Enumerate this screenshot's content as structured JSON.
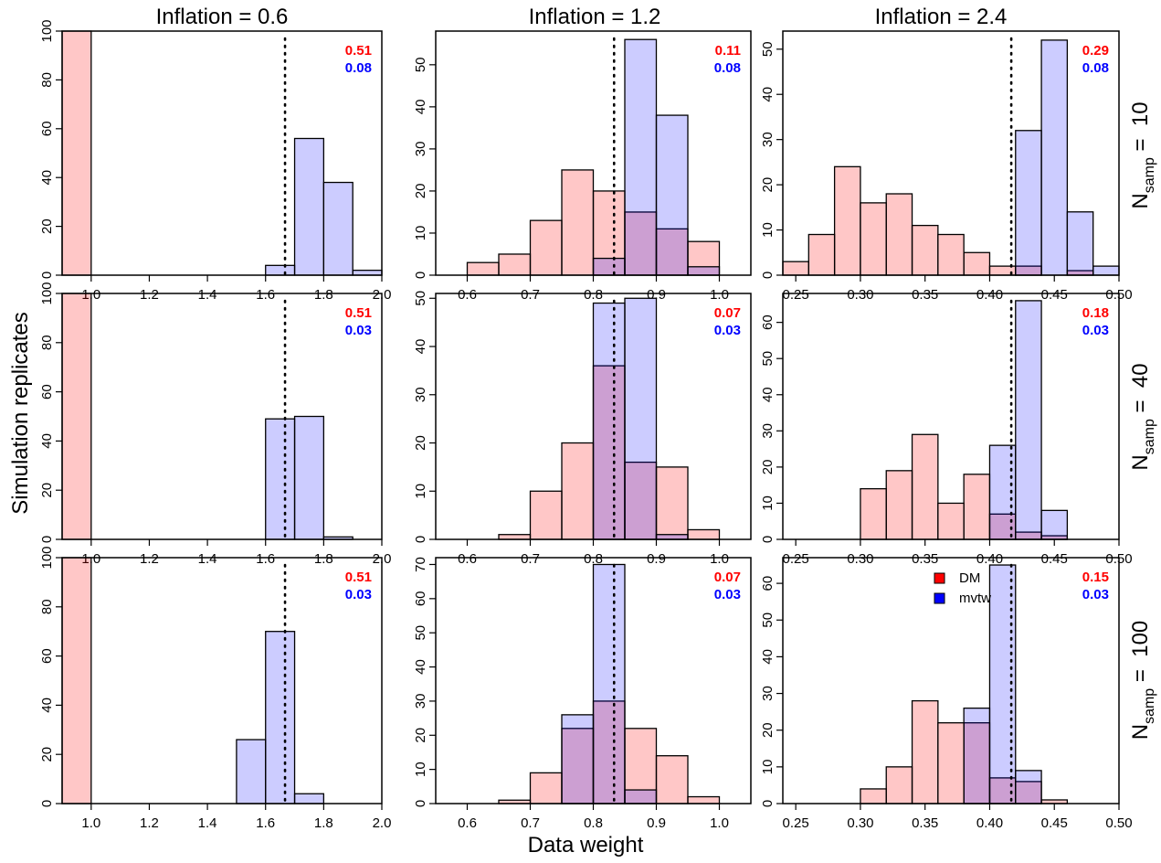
{
  "figure": {
    "ylabel": "Simulation replicates",
    "xlabel": "Data weight",
    "column_titles": [
      "Inflation = 0.6",
      "Inflation = 1.2",
      "Inflation = 2.4"
    ],
    "row_labels": [
      {
        "prefix": "N",
        "subscript": "samp",
        "suffix": " =  10"
      },
      {
        "prefix": "N",
        "subscript": "samp",
        "suffix": " =  40"
      },
      {
        "prefix": "N",
        "subscript": "samp",
        "suffix": " =  100"
      }
    ],
    "legend": {
      "entries": [
        {
          "name": "DM",
          "color": "#ff0000"
        },
        {
          "name": "mvtw",
          "color": "#0000ff"
        }
      ],
      "placement": "panel row 3, column 3, top-right"
    },
    "colors": {
      "dm_fill": "rgba(255,0,0,0.22)",
      "mvtw_fill": "rgba(0,0,255,0.20)",
      "dm_text": "#ff0000",
      "mvtw_text": "#0000ff"
    }
  },
  "chart_data": [
    {
      "type": "bar",
      "row": 0,
      "col": 0,
      "title": "Inflation = 0.6",
      "row_label": "Nsamp = 10",
      "xlim": [
        0.9,
        2.0
      ],
      "ylim": [
        0,
        100
      ],
      "xticks": [
        "1.0",
        "1.2",
        "1.4",
        "1.6",
        "1.8",
        "2.0"
      ],
      "yticks": [
        "0",
        "20",
        "40",
        "60",
        "80",
        "100"
      ],
      "ref_line": 1.667,
      "stat_dm": "0.51",
      "stat_mvtw": "0.08",
      "series": [
        {
          "name": "DM",
          "bins": [
            [
              0.9,
              1.0,
              100
            ]
          ]
        },
        {
          "name": "mvtw",
          "bins": [
            [
              1.6,
              1.7,
              4
            ],
            [
              1.7,
              1.8,
              56
            ],
            [
              1.8,
              1.9,
              38
            ],
            [
              1.9,
              2.0,
              2
            ]
          ]
        }
      ]
    },
    {
      "type": "bar",
      "row": 0,
      "col": 1,
      "title": "Inflation = 1.2",
      "row_label": "Nsamp = 10",
      "xlim": [
        0.55,
        1.05
      ],
      "ylim": [
        0,
        58
      ],
      "xticks": [
        "0.6",
        "0.7",
        "0.8",
        "0.9",
        "1.0"
      ],
      "yticks": [
        "0",
        "10",
        "20",
        "30",
        "40",
        "50"
      ],
      "ref_line": 0.833,
      "stat_dm": "0.11",
      "stat_mvtw": "0.08",
      "series": [
        {
          "name": "DM",
          "bins": [
            [
              0.6,
              0.65,
              3
            ],
            [
              0.65,
              0.7,
              5
            ],
            [
              0.7,
              0.75,
              13
            ],
            [
              0.75,
              0.8,
              25
            ],
            [
              0.8,
              0.85,
              20
            ],
            [
              0.85,
              0.9,
              15
            ],
            [
              0.9,
              0.95,
              11
            ],
            [
              0.95,
              1.0,
              8
            ]
          ]
        },
        {
          "name": "mvtw",
          "bins": [
            [
              0.8,
              0.85,
              4
            ],
            [
              0.85,
              0.9,
              56
            ],
            [
              0.9,
              0.95,
              38
            ],
            [
              0.95,
              1.0,
              2
            ]
          ]
        }
      ]
    },
    {
      "type": "bar",
      "row": 0,
      "col": 2,
      "title": "Inflation = 2.4",
      "row_label": "Nsamp = 10",
      "xlim": [
        0.24,
        0.5
      ],
      "ylim": [
        0,
        54
      ],
      "xticks": [
        "0.25",
        "0.30",
        "0.35",
        "0.40",
        "0.45",
        "0.50"
      ],
      "yticks": [
        "0",
        "10",
        "20",
        "30",
        "40",
        "50"
      ],
      "ref_line": 0.4167,
      "stat_dm": "0.29",
      "stat_mvtw": "0.08",
      "series": [
        {
          "name": "DM",
          "bins": [
            [
              0.24,
              0.26,
              3
            ],
            [
              0.26,
              0.28,
              9
            ],
            [
              0.28,
              0.3,
              24
            ],
            [
              0.3,
              0.32,
              16
            ],
            [
              0.32,
              0.34,
              18
            ],
            [
              0.34,
              0.36,
              11
            ],
            [
              0.36,
              0.38,
              9
            ],
            [
              0.38,
              0.4,
              5
            ],
            [
              0.4,
              0.42,
              2
            ],
            [
              0.42,
              0.44,
              2
            ],
            [
              0.46,
              0.48,
              1
            ]
          ]
        },
        {
          "name": "mvtw",
          "bins": [
            [
              0.42,
              0.44,
              32
            ],
            [
              0.44,
              0.46,
              52
            ],
            [
              0.46,
              0.48,
              14
            ],
            [
              0.48,
              0.5,
              2
            ]
          ]
        }
      ]
    },
    {
      "type": "bar",
      "row": 1,
      "col": 0,
      "title": "Inflation = 0.6",
      "row_label": "Nsamp = 40",
      "xlim": [
        0.9,
        2.0
      ],
      "ylim": [
        0,
        100
      ],
      "xticks": [
        "1.0",
        "1.2",
        "1.4",
        "1.6",
        "1.8",
        "2.0"
      ],
      "yticks": [
        "0",
        "20",
        "40",
        "60",
        "80",
        "100"
      ],
      "ref_line": 1.667,
      "stat_dm": "0.51",
      "stat_mvtw": "0.03",
      "series": [
        {
          "name": "DM",
          "bins": [
            [
              0.9,
              1.0,
              100
            ]
          ]
        },
        {
          "name": "mvtw",
          "bins": [
            [
              1.6,
              1.7,
              49
            ],
            [
              1.7,
              1.8,
              50
            ],
            [
              1.8,
              1.9,
              1
            ]
          ]
        }
      ]
    },
    {
      "type": "bar",
      "row": 1,
      "col": 1,
      "title": "Inflation = 1.2",
      "row_label": "Nsamp = 40",
      "xlim": [
        0.55,
        1.05
      ],
      "ylim": [
        0,
        51
      ],
      "xticks": [
        "0.6",
        "0.7",
        "0.8",
        "0.9",
        "1.0"
      ],
      "yticks": [
        "0",
        "10",
        "20",
        "30",
        "40",
        "50"
      ],
      "ref_line": 0.833,
      "stat_dm": "0.07",
      "stat_mvtw": "0.03",
      "series": [
        {
          "name": "DM",
          "bins": [
            [
              0.65,
              0.7,
              1
            ],
            [
              0.7,
              0.75,
              10
            ],
            [
              0.75,
              0.8,
              20
            ],
            [
              0.8,
              0.85,
              36
            ],
            [
              0.85,
              0.9,
              16
            ],
            [
              0.9,
              0.95,
              15
            ],
            [
              0.95,
              1.0,
              2
            ]
          ]
        },
        {
          "name": "mvtw",
          "bins": [
            [
              0.8,
              0.85,
              49
            ],
            [
              0.85,
              0.9,
              50
            ],
            [
              0.9,
              0.95,
              1
            ]
          ]
        }
      ]
    },
    {
      "type": "bar",
      "row": 1,
      "col": 2,
      "title": "Inflation = 2.4",
      "row_label": "Nsamp = 40",
      "xlim": [
        0.24,
        0.5
      ],
      "ylim": [
        0,
        68
      ],
      "xticks": [
        "0.25",
        "0.30",
        "0.35",
        "0.40",
        "0.45",
        "0.50"
      ],
      "yticks": [
        "0",
        "10",
        "20",
        "30",
        "40",
        "50",
        "60"
      ],
      "ref_line": 0.4167,
      "stat_dm": "0.18",
      "stat_mvtw": "0.03",
      "series": [
        {
          "name": "DM",
          "bins": [
            [
              0.3,
              0.32,
              14
            ],
            [
              0.32,
              0.34,
              19
            ],
            [
              0.34,
              0.36,
              29
            ],
            [
              0.36,
              0.38,
              10
            ],
            [
              0.38,
              0.4,
              18
            ],
            [
              0.4,
              0.42,
              7
            ],
            [
              0.42,
              0.44,
              2
            ],
            [
              0.44,
              0.46,
              1
            ]
          ]
        },
        {
          "name": "mvtw",
          "bins": [
            [
              0.4,
              0.42,
              26
            ],
            [
              0.42,
              0.44,
              66
            ],
            [
              0.44,
              0.46,
              8
            ]
          ]
        }
      ]
    },
    {
      "type": "bar",
      "row": 2,
      "col": 0,
      "title": "Inflation = 0.6",
      "row_label": "Nsamp = 100",
      "xlim": [
        0.9,
        2.0
      ],
      "ylim": [
        0,
        100
      ],
      "xticks": [
        "1.0",
        "1.2",
        "1.4",
        "1.6",
        "1.8",
        "2.0"
      ],
      "yticks": [
        "0",
        "20",
        "40",
        "60",
        "80",
        "100"
      ],
      "ref_line": 1.667,
      "stat_dm": "0.51",
      "stat_mvtw": "0.03",
      "series": [
        {
          "name": "DM",
          "bins": [
            [
              0.9,
              1.0,
              100
            ]
          ]
        },
        {
          "name": "mvtw",
          "bins": [
            [
              1.5,
              1.6,
              26
            ],
            [
              1.6,
              1.7,
              70
            ],
            [
              1.7,
              1.8,
              4
            ]
          ]
        }
      ]
    },
    {
      "type": "bar",
      "row": 2,
      "col": 1,
      "title": "Inflation = 1.2",
      "row_label": "Nsamp = 100",
      "xlim": [
        0.55,
        1.05
      ],
      "ylim": [
        0,
        72
      ],
      "xticks": [
        "0.6",
        "0.7",
        "0.8",
        "0.9",
        "1.0"
      ],
      "yticks": [
        "0",
        "10",
        "20",
        "30",
        "40",
        "50",
        "60",
        "70"
      ],
      "ref_line": 0.833,
      "stat_dm": "0.07",
      "stat_mvtw": "0.03",
      "series": [
        {
          "name": "DM",
          "bins": [
            [
              0.65,
              0.7,
              1
            ],
            [
              0.7,
              0.75,
              9
            ],
            [
              0.75,
              0.8,
              22
            ],
            [
              0.8,
              0.85,
              30
            ],
            [
              0.85,
              0.9,
              22
            ],
            [
              0.9,
              0.95,
              14
            ],
            [
              0.95,
              1.0,
              2
            ]
          ]
        },
        {
          "name": "mvtw",
          "bins": [
            [
              0.75,
              0.8,
              26
            ],
            [
              0.8,
              0.85,
              70
            ],
            [
              0.85,
              0.9,
              4
            ]
          ]
        }
      ]
    },
    {
      "type": "bar",
      "row": 2,
      "col": 2,
      "title": "Inflation = 2.4",
      "row_label": "Nsamp = 100",
      "xlim": [
        0.24,
        0.5
      ],
      "ylim": [
        0,
        67
      ],
      "xticks": [
        "0.25",
        "0.30",
        "0.35",
        "0.40",
        "0.45",
        "0.50"
      ],
      "yticks": [
        "0",
        "10",
        "20",
        "30",
        "40",
        "50",
        "60"
      ],
      "ref_line": 0.4167,
      "stat_dm": "0.15",
      "stat_mvtw": "0.03",
      "series": [
        {
          "name": "DM",
          "bins": [
            [
              0.3,
              0.32,
              4
            ],
            [
              0.32,
              0.34,
              10
            ],
            [
              0.34,
              0.36,
              28
            ],
            [
              0.36,
              0.38,
              22
            ],
            [
              0.38,
              0.4,
              22
            ],
            [
              0.4,
              0.42,
              7
            ],
            [
              0.42,
              0.44,
              6
            ],
            [
              0.44,
              0.46,
              1
            ]
          ]
        },
        {
          "name": "mvtw",
          "bins": [
            [
              0.38,
              0.4,
              26
            ],
            [
              0.4,
              0.42,
              65
            ],
            [
              0.42,
              0.44,
              9
            ]
          ]
        }
      ]
    }
  ]
}
